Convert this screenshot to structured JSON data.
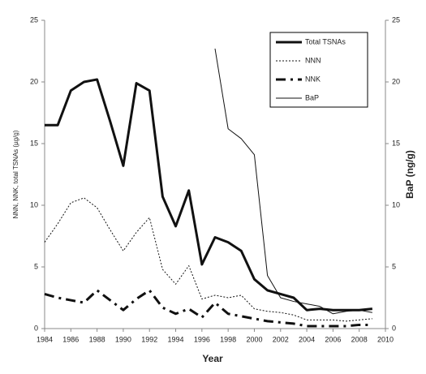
{
  "chart_data": {
    "type": "line",
    "x_label": "Year",
    "y_label": "NNN, NNK, total TSNAs (µg/g)",
    "y2_label": "BaP (ng/g)",
    "x": [
      1984,
      1985,
      1986,
      1987,
      1988,
      1989,
      1990,
      1991,
      1992,
      1993,
      1994,
      1995,
      1996,
      1997,
      1998,
      1999,
      2000,
      2001,
      2002,
      2003,
      2004,
      2005,
      2006,
      2007,
      2008,
      2009
    ],
    "xlim": [
      1984,
      2010
    ],
    "xticks": [
      1984,
      1986,
      1988,
      1990,
      1992,
      1994,
      1996,
      1998,
      2000,
      2002,
      2004,
      2006,
      2008,
      2010
    ],
    "ylim": [
      0,
      25
    ],
    "yticks": [
      0,
      5,
      10,
      15,
      20,
      25
    ],
    "y2lim": [
      0,
      25
    ],
    "y2ticks": [
      0,
      5,
      10,
      15,
      20,
      25
    ],
    "legend": "upper right",
    "series": [
      {
        "name": "Total TSNAs",
        "color": "#111111",
        "width": 3,
        "dash": "solid",
        "values": [
          16.5,
          16.5,
          19.3,
          20,
          20.2,
          16.8,
          13.2,
          19.9,
          19.3,
          10.7,
          8.3,
          11.2,
          5.2,
          7.4,
          7.0,
          6.3,
          4.0,
          3.1,
          2.8,
          2.5,
          1.5,
          1.6,
          1.5,
          1.5,
          1.5,
          1.6
        ]
      },
      {
        "name": "NNN",
        "color": "#111111",
        "width": 1,
        "dash": "dotted",
        "values": [
          7.0,
          8.5,
          10.2,
          10.6,
          9.8,
          8.0,
          6.3,
          7.8,
          9.0,
          4.8,
          3.6,
          5.1,
          2.4,
          2.7,
          2.5,
          2.7,
          1.6,
          1.4,
          1.3,
          1.1,
          0.7,
          0.7,
          0.7,
          0.6,
          0.7,
          0.8
        ]
      },
      {
        "name": "NNK",
        "color": "#111111",
        "width": 3,
        "dash": "dashdot",
        "values": [
          2.8,
          2.5,
          2.3,
          2.1,
          3.1,
          2.3,
          1.5,
          2.4,
          3.1,
          1.7,
          1.2,
          1.6,
          0.9,
          2.1,
          1.2,
          1.0,
          0.8,
          0.6,
          0.5,
          0.4,
          0.2,
          0.2,
          0.2,
          0.2,
          0.3,
          0.3
        ]
      },
      {
        "name": "BaP",
        "color": "#111111",
        "width": 1,
        "dash": "solid",
        "axis": "y2",
        "values": [
          null,
          null,
          null,
          null,
          null,
          null,
          null,
          null,
          null,
          null,
          null,
          null,
          null,
          22.7,
          16.2,
          15.4,
          14.1,
          4.3,
          2.5,
          2.2,
          2.0,
          1.8,
          1.2,
          1.4,
          1.5,
          1.3
        ]
      }
    ]
  }
}
